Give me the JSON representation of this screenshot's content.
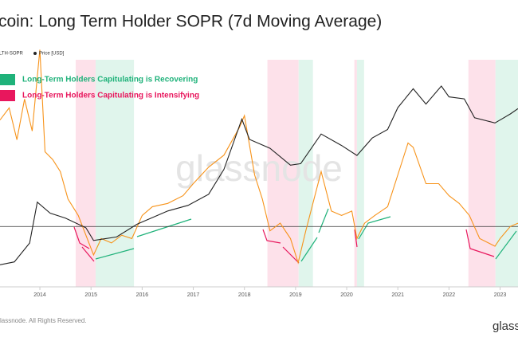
{
  "chart_data": {
    "type": "line",
    "title": "coin: Long Term Holder SOPR (7d Moving Average)",
    "xlim": [
      2013.22,
      2023.35
    ],
    "xticks": [
      2014,
      2015,
      2016,
      2017,
      2018,
      2019,
      2020,
      2021,
      2022,
      2023
    ],
    "ylim": [
      0.45,
      2.7
    ],
    "y2lim": [
      40,
      350000
    ],
    "y2log": true,
    "reference_line": 1,
    "series": [
      {
        "name": "LTH-SOPR",
        "color": "#f7931a",
        "x": [
          2013.22,
          2013.4,
          2013.55,
          2013.7,
          2013.85,
          2014.0,
          2014.1,
          2014.25,
          2014.4,
          2014.55,
          2014.75,
          2014.9,
          2015.05,
          2015.2,
          2015.4,
          2015.6,
          2015.8,
          2016.0,
          2016.2,
          2016.5,
          2016.8,
          2017.0,
          2017.3,
          2017.6,
          2017.9,
          2018.0,
          2018.2,
          2018.35,
          2018.5,
          2018.7,
          2018.9,
          2019.05,
          2019.2,
          2019.5,
          2019.7,
          2019.9,
          2020.1,
          2020.2,
          2020.35,
          2020.55,
          2020.8,
          2021.0,
          2021.2,
          2021.3,
          2021.55,
          2021.8,
          2022.0,
          2022.2,
          2022.4,
          2022.6,
          2022.9,
          2023.0,
          2023.2,
          2023.35
        ],
        "values": [
          1.97,
          2.08,
          1.79,
          2.16,
          1.87,
          2.61,
          1.68,
          1.61,
          1.5,
          1.25,
          1.1,
          0.92,
          0.74,
          0.89,
          0.85,
          0.92,
          0.89,
          1.1,
          1.18,
          1.21,
          1.28,
          1.39,
          1.54,
          1.65,
          1.9,
          2.01,
          1.47,
          1.25,
          0.96,
          1.03,
          0.89,
          0.67,
          0.96,
          1.5,
          1.14,
          1.1,
          1.14,
          0.89,
          1.03,
          1.1,
          1.18,
          1.47,
          1.76,
          1.72,
          1.39,
          1.39,
          1.28,
          1.21,
          1.1,
          0.89,
          0.82,
          0.89,
          1.0,
          1.03
        ]
      },
      {
        "name": "Price [USD]",
        "color": "#222222",
        "axis": "y2",
        "x": [
          2013.22,
          2013.5,
          2013.8,
          2013.95,
          2014.2,
          2014.5,
          2014.9,
          2015.05,
          2015.5,
          2015.9,
          2016.5,
          2016.9,
          2017.3,
          2017.6,
          2017.95,
          2018.1,
          2018.5,
          2018.9,
          2019.1,
          2019.5,
          2019.9,
          2020.2,
          2020.5,
          2020.8,
          2021.0,
          2021.3,
          2021.55,
          2021.85,
          2022.0,
          2022.3,
          2022.5,
          2022.9,
          2023.2,
          2023.35
        ],
        "values": [
          90,
          100,
          200,
          900,
          600,
          500,
          350,
          220,
          250,
          400,
          650,
          800,
          1200,
          3000,
          19000,
          9000,
          6500,
          3500,
          3700,
          11000,
          7200,
          5000,
          9500,
          13000,
          29000,
          58000,
          33000,
          64000,
          43000,
          40000,
          20000,
          16500,
          23000,
          28000
        ]
      }
    ],
    "regions": [
      {
        "start": 2014.7,
        "end": 2015.09,
        "color": "#fde1ea"
      },
      {
        "start": 2015.09,
        "end": 2015.84,
        "color": "#e0f5ec"
      },
      {
        "start": 2018.45,
        "end": 2019.06,
        "color": "#fde1ea"
      },
      {
        "start": 2019.06,
        "end": 2019.34,
        "color": "#e0f5ec"
      },
      {
        "start": 2020.15,
        "end": 2020.2,
        "color": "#fde1ea"
      },
      {
        "start": 2020.2,
        "end": 2020.34,
        "color": "#e0f5ec"
      },
      {
        "start": 2022.38,
        "end": 2022.91,
        "color": "#fde1ea"
      },
      {
        "start": 2022.91,
        "end": 2023.35,
        "color": "#e0f5ec"
      }
    ],
    "annotations": [
      {
        "text": "Long-Term Holders Capitulating is Recovering",
        "color": "#1fb27a"
      },
      {
        "text": "Long-Term Holders Capitulating is Intensifying",
        "color": "#e8175d"
      }
    ],
    "watermark": "glassnode",
    "footer": "lassnode. All Rights Reserved.",
    "logo": "glassn"
  }
}
